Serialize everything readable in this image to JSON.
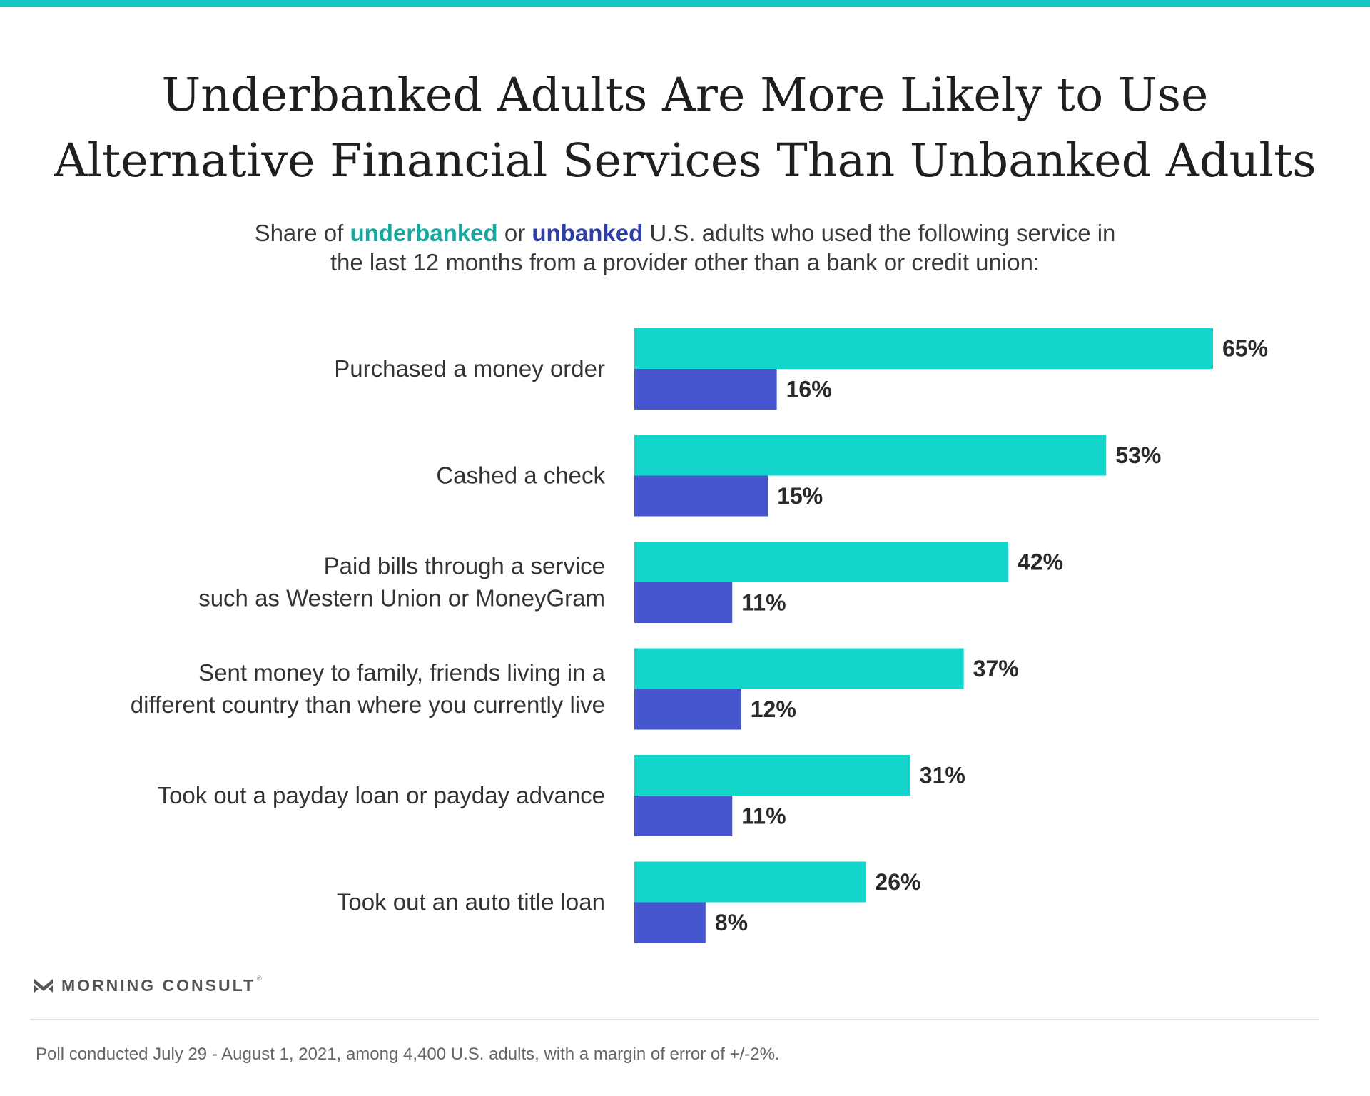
{
  "colors": {
    "top_bar": "#13c9c3",
    "underbanked": "#12d6cc",
    "unbanked": "#4656cf",
    "underbanked_text": "#15a89e",
    "unbanked_text": "#2e3da6"
  },
  "title": {
    "line1": "Underbanked Adults Are More Likely to Use",
    "line2": "Alternative Financial Services Than Unbanked Adults"
  },
  "subtitle": {
    "part1": "Share of ",
    "underbanked": "underbanked",
    "part2": " or ",
    "unbanked": "unbanked",
    "part3": " U.S. adults who used the following service in",
    "line2": "the last 12 months from a provider other than a bank or credit union:"
  },
  "chart_data": {
    "type": "bar",
    "orientation": "horizontal",
    "categories": [
      [
        "Purchased a money order"
      ],
      [
        "Cashed a check"
      ],
      [
        "Paid bills through a service",
        "such as Western Union or MoneyGram"
      ],
      [
        "Sent money to family, friends living in a",
        "different country than where you currently live"
      ],
      [
        "Took out a payday loan or payday advance"
      ],
      [
        "Took out an auto title loan"
      ]
    ],
    "series": [
      {
        "name": "underbanked",
        "values": [
          65,
          53,
          42,
          37,
          31,
          26
        ],
        "labels": [
          "65%",
          "53%",
          "42%",
          "37%",
          "31%",
          "26%"
        ]
      },
      {
        "name": "unbanked",
        "values": [
          16,
          15,
          11,
          12,
          11,
          8
        ],
        "labels": [
          "16%",
          "15%",
          "11%",
          "12%",
          "11%",
          "8%"
        ]
      }
    ],
    "xlim": [
      0,
      65
    ],
    "grid": false,
    "legend": "none"
  },
  "logo": {
    "text": "MORNING CONSULT",
    "tm": "®"
  },
  "footnote": "Poll conducted July 29 - August 1, 2021, among 4,400 U.S. adults, with a margin of error of +/-2%."
}
